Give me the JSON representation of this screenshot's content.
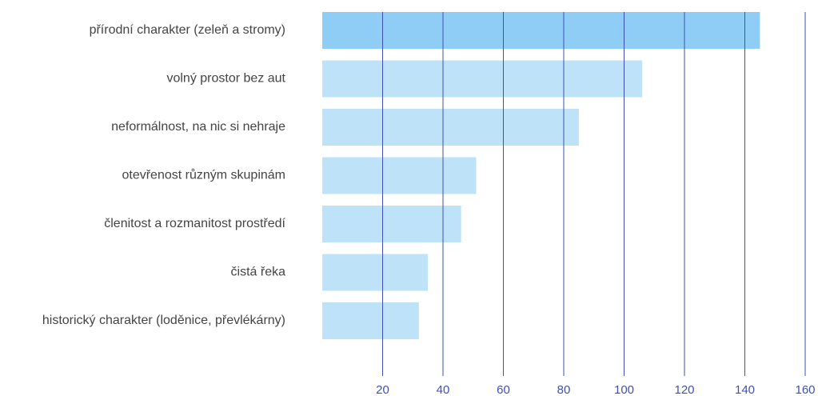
{
  "chart_data": {
    "type": "bar",
    "orientation": "horizontal",
    "categories": [
      "přírodní charakter (zeleň a stromy)",
      "volný prostor bez aut",
      "neformálnost, na nic si nehraje",
      "otevřenost různým skupinám",
      "členitost a rozmanitost prostředí",
      "čistá řeka",
      "historický charakter (loděnice, převlékárny)"
    ],
    "values": [
      145,
      106,
      85,
      51,
      46,
      35,
      32
    ],
    "colors": [
      "#90cdf6",
      "#bee3f8",
      "#bee3f8",
      "#bee3f8",
      "#bee3f8",
      "#bee3f8",
      "#bee3f8"
    ],
    "xlim": [
      0,
      160
    ],
    "xticks": [
      20,
      40,
      60,
      80,
      100,
      120,
      140,
      160
    ],
    "grid": true,
    "grid_color": "#3f51b5"
  }
}
